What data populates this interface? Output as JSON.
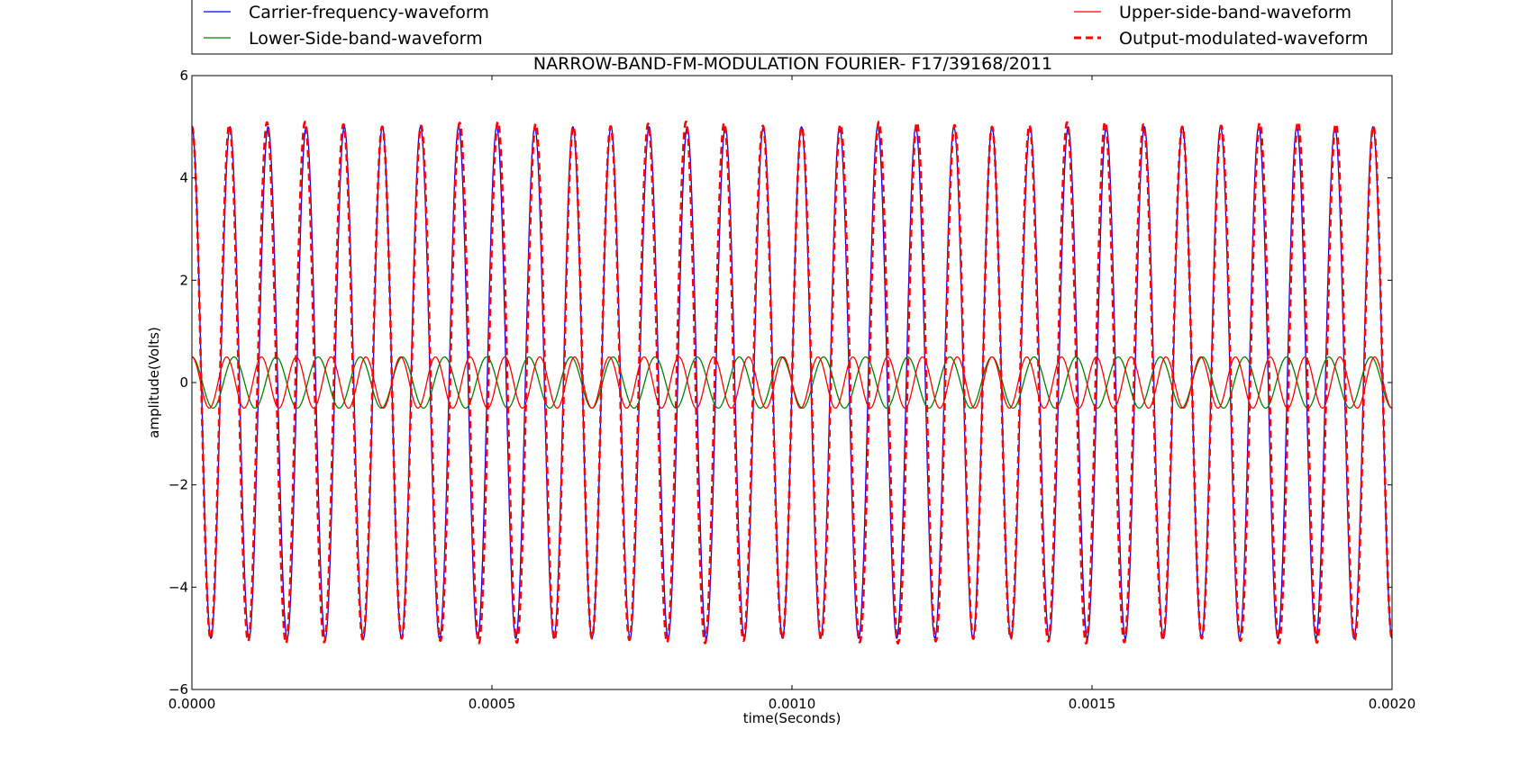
{
  "chart_data": {
    "type": "line",
    "title": "NARROW-BAND-FM-MODULATION FOURIER- F17/39168/2011",
    "xlabel": "time(Seconds)",
    "ylabel": "amplitude(Volts)",
    "xlim": [
      0,
      0.002
    ],
    "ylim": [
      -6,
      6
    ],
    "x_ticks": [
      "0.0000",
      "0.0005",
      "0.0010",
      "0.0015",
      "0.0020"
    ],
    "y_ticks": [
      "6",
      "4",
      "2",
      "0",
      "−2",
      "−4",
      "−6"
    ],
    "x_tick_values": [
      0,
      0.0005,
      0.001,
      0.0015,
      0.002
    ],
    "y_tick_values": [
      6,
      4,
      2,
      0,
      -2,
      -4,
      -6
    ],
    "grid": false,
    "legend_position": "top (above plot, two columns)",
    "series": [
      {
        "name": "Carrier-frequency-waveform",
        "color": "#0000ff",
        "style": "solid",
        "function": "A*cos(2*pi*f*t)",
        "amplitude": 5,
        "frequency_hz": 15750
      },
      {
        "name": "Lower-Side-band-waveform",
        "color": "#008000",
        "style": "solid",
        "function": "A*cos(2*pi*f*t)",
        "amplitude": 0.5,
        "frequency_hz": 14250
      },
      {
        "name": "Upper-side-band-waveform",
        "color": "#ff0000",
        "style": "solid",
        "function": "A*cos(2*pi*f*t)",
        "amplitude": 0.5,
        "frequency_hz": 17250
      },
      {
        "name": "Output-modulated-waveform",
        "color": "#ff0000",
        "style": "dashed",
        "function": "carrier - lower + upper",
        "amplitude": 5.1,
        "frequency_hz": 15750
      }
    ]
  }
}
